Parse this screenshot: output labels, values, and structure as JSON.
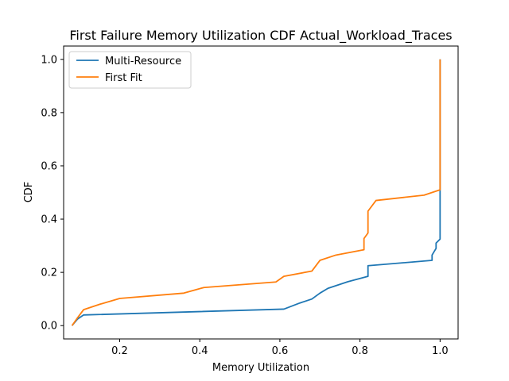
{
  "chart_data": {
    "type": "line",
    "title": "First Failure Memory Utilization CDF Actual_Workload_Traces",
    "xlabel": "Memory Utilization",
    "ylabel": "CDF",
    "xlim": [
      0.06,
      1.045
    ],
    "ylim": [
      -0.05,
      1.05
    ],
    "xticks": [
      0.2,
      0.4,
      0.6,
      0.8,
      1.0
    ],
    "xtick_labels": [
      "0.2",
      "0.4",
      "0.6",
      "0.8",
      "1.0"
    ],
    "yticks": [
      0.0,
      0.2,
      0.4,
      0.6,
      0.8,
      1.0
    ],
    "ytick_labels": [
      "0.0",
      "0.2",
      "0.4",
      "0.6",
      "0.8",
      "1.0"
    ],
    "grid": false,
    "legend": "top-left",
    "series": [
      {
        "name": "Multi-Resource",
        "color": "#1f77b4",
        "x": [
          0.081,
          0.095,
          0.11,
          0.61,
          0.65,
          0.68,
          0.7,
          0.72,
          0.77,
          0.82,
          0.82,
          0.98,
          0.98,
          0.99,
          0.99,
          1.0,
          1.0
        ],
        "y": [
          0.0,
          0.025,
          0.04,
          0.062,
          0.085,
          0.1,
          0.122,
          0.14,
          0.165,
          0.185,
          0.225,
          0.245,
          0.265,
          0.29,
          0.31,
          0.325,
          1.0
        ]
      },
      {
        "name": "First Fit",
        "color": "#ff7f0e",
        "x": [
          0.081,
          0.095,
          0.11,
          0.15,
          0.2,
          0.36,
          0.41,
          0.59,
          0.61,
          0.68,
          0.7,
          0.74,
          0.81,
          0.81,
          0.82,
          0.82,
          0.84,
          0.96,
          1.0,
          1.0
        ],
        "y": [
          0.0,
          0.03,
          0.06,
          0.08,
          0.102,
          0.122,
          0.143,
          0.164,
          0.185,
          0.205,
          0.245,
          0.265,
          0.285,
          0.327,
          0.348,
          0.43,
          0.47,
          0.49,
          0.51,
          1.0
        ]
      }
    ]
  }
}
